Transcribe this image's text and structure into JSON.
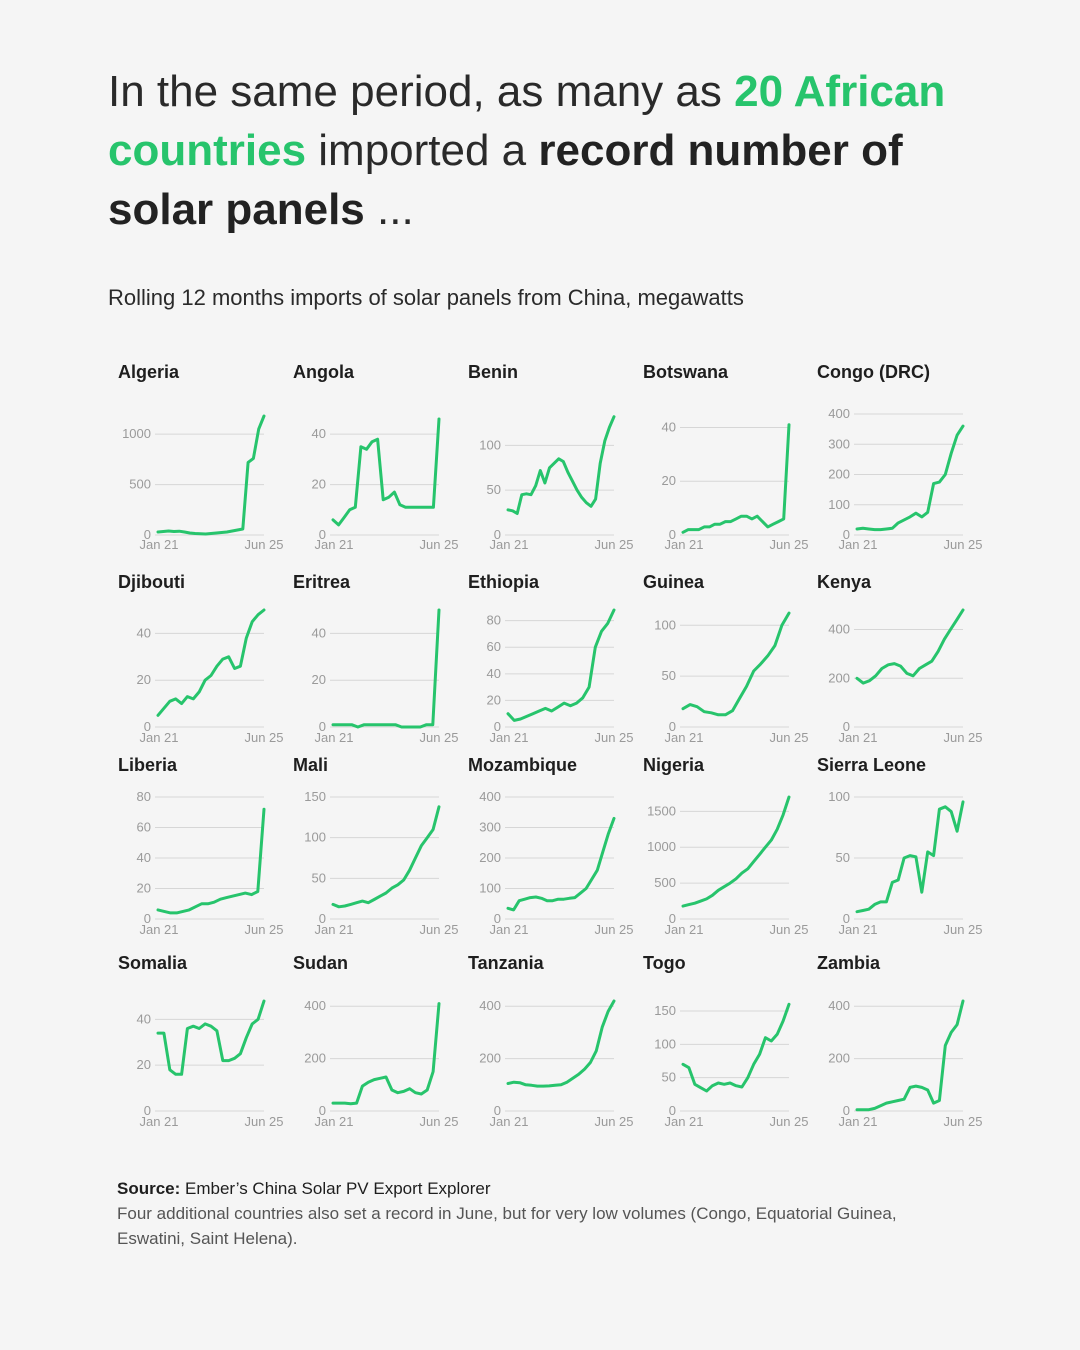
{
  "headline": {
    "p1": "In the same period,  as many as ",
    "accent": "20 African countries",
    "p2": " imported a ",
    "bold": "record number of solar panels",
    "p3": " ..."
  },
  "subtitle": "Rolling 12 months imports of solar panels from China, megawatts",
  "colors": {
    "line": "#27c46c",
    "grid": "#d6d6d6",
    "tick": "#9a9a9a",
    "background": "#f5f5f5"
  },
  "chart_data": [
    {
      "type": "line",
      "title": "Algeria",
      "x_labels": [
        "Jan 21",
        "Jun 25"
      ],
      "yticks": [
        0,
        500,
        1000
      ],
      "ylim": [
        0,
        1200
      ],
      "values": [
        30,
        35,
        40,
        35,
        38,
        30,
        20,
        15,
        12,
        10,
        15,
        20,
        25,
        30,
        40,
        50,
        60,
        720,
        760,
        1050,
        1180
      ]
    },
    {
      "type": "line",
      "title": "Angola",
      "x_labels": [
        "Jan 21",
        "Jun 25"
      ],
      "yticks": [
        0,
        20,
        40
      ],
      "ylim": [
        0,
        48
      ],
      "values": [
        6,
        4,
        7,
        10,
        11,
        35,
        34,
        37,
        38,
        14,
        15,
        17,
        12,
        11,
        11,
        11,
        11,
        11,
        11,
        46
      ]
    },
    {
      "type": "line",
      "title": "Benin",
      "x_labels": [
        "Jan 21",
        "Jun 25"
      ],
      "yticks": [
        0,
        50,
        100
      ],
      "ylim": [
        0,
        135
      ],
      "values": [
        28,
        27,
        24,
        45,
        46,
        45,
        55,
        72,
        58,
        75,
        80,
        85,
        82,
        70,
        60,
        50,
        42,
        36,
        32,
        40,
        80,
        105,
        120,
        132
      ]
    },
    {
      "type": "line",
      "title": "Botswana",
      "x_labels": [
        "Jan 21",
        "Jun 25"
      ],
      "yticks": [
        0,
        20,
        40
      ],
      "ylim": [
        0,
        45
      ],
      "values": [
        1,
        2,
        2,
        2,
        3,
        3,
        4,
        4,
        5,
        5,
        6,
        7,
        7,
        6,
        7,
        5,
        3,
        4,
        5,
        6,
        41
      ]
    },
    {
      "type": "line",
      "title": "Congo (DRC)",
      "x_labels": [
        "Jan 21",
        "Jun 25"
      ],
      "yticks": [
        0,
        100,
        200,
        300,
        400
      ],
      "ylim": [
        0,
        400
      ],
      "values": [
        20,
        22,
        20,
        18,
        18,
        20,
        22,
        40,
        50,
        60,
        72,
        60,
        75,
        170,
        175,
        200,
        270,
        330,
        360
      ]
    },
    {
      "type": "line",
      "title": "Djibouti",
      "x_labels": [
        "Jan 21",
        "Jun 25"
      ],
      "yticks": [
        0,
        20,
        40
      ],
      "ylim": [
        0,
        50
      ],
      "values": [
        5,
        8,
        11,
        12,
        10,
        13,
        12,
        15,
        20,
        22,
        26,
        29,
        30,
        25,
        26,
        38,
        45,
        48,
        50
      ]
    },
    {
      "type": "line",
      "title": "Eritrea",
      "x_labels": [
        "Jan 21",
        "Jun 25"
      ],
      "yticks": [
        0,
        20,
        40
      ],
      "ylim": [
        0,
        50
      ],
      "values": [
        1,
        1,
        1,
        1,
        0,
        1,
        1,
        1,
        1,
        1,
        1,
        0,
        0,
        0,
        0,
        1,
        1,
        50
      ]
    },
    {
      "type": "line",
      "title": "Ethiopia",
      "x_labels": [
        "Jan 21",
        "Jun 25"
      ],
      "yticks": [
        0,
        20,
        40,
        60,
        80
      ],
      "ylim": [
        0,
        88
      ],
      "values": [
        10,
        5,
        6,
        8,
        10,
        12,
        14,
        12,
        15,
        18,
        16,
        18,
        22,
        30,
        60,
        72,
        78,
        88
      ]
    },
    {
      "type": "line",
      "title": "Guinea",
      "x_labels": [
        "Jan 21",
        "Jun 25"
      ],
      "yticks": [
        0,
        50,
        100
      ],
      "ylim": [
        0,
        115
      ],
      "values": [
        18,
        22,
        20,
        15,
        14,
        12,
        12,
        16,
        28,
        40,
        55,
        62,
        70,
        80,
        100,
        112
      ]
    },
    {
      "type": "line",
      "title": "Kenya",
      "x_labels": [
        "Jan 21",
        "Jun 25"
      ],
      "yticks": [
        0,
        200,
        400
      ],
      "ylim": [
        0,
        480
      ],
      "values": [
        200,
        180,
        190,
        210,
        240,
        255,
        260,
        250,
        220,
        210,
        240,
        255,
        270,
        310,
        360,
        400,
        440,
        480
      ]
    },
    {
      "type": "line",
      "title": "Liberia",
      "x_labels": [
        "Jan 21",
        "Jun 25"
      ],
      "yticks": [
        0,
        20,
        40,
        60,
        80
      ],
      "ylim": [
        0,
        80
      ],
      "values": [
        6,
        5,
        4,
        4,
        5,
        6,
        8,
        10,
        10,
        11,
        13,
        14,
        15,
        16,
        17,
        16,
        18,
        72
      ]
    },
    {
      "type": "line",
      "title": "Mali",
      "x_labels": [
        "Jan 21",
        "Jun 25"
      ],
      "yticks": [
        0,
        50,
        100,
        150
      ],
      "ylim": [
        0,
        150
      ],
      "values": [
        18,
        15,
        16,
        18,
        20,
        22,
        20,
        24,
        28,
        32,
        38,
        42,
        48,
        60,
        75,
        90,
        100,
        110,
        138
      ]
    },
    {
      "type": "line",
      "title": "Mozambique",
      "x_labels": [
        "Jan 21",
        "Jun 25"
      ],
      "yticks": [
        0,
        100,
        200,
        300,
        400
      ],
      "ylim": [
        0,
        400
      ],
      "values": [
        35,
        30,
        60,
        65,
        70,
        72,
        68,
        60,
        60,
        65,
        65,
        68,
        70,
        85,
        100,
        130,
        160,
        220,
        280,
        330
      ]
    },
    {
      "type": "line",
      "title": "Nigeria",
      "x_labels": [
        "Jan 21",
        "Jun 25"
      ],
      "yticks": [
        0,
        500,
        1000,
        1500
      ],
      "ylim": [
        0,
        1700
      ],
      "values": [
        180,
        200,
        220,
        250,
        280,
        330,
        400,
        450,
        500,
        560,
        640,
        700,
        800,
        900,
        1000,
        1100,
        1250,
        1450,
        1700
      ]
    },
    {
      "type": "line",
      "title": "Sierra Leone",
      "x_labels": [
        "Jan 21",
        "Jun 25"
      ],
      "yticks": [
        0,
        50,
        100
      ],
      "ylim": [
        0,
        100
      ],
      "values": [
        6,
        7,
        8,
        12,
        14,
        14,
        30,
        32,
        50,
        52,
        51,
        22,
        55,
        52,
        90,
        92,
        88,
        72,
        96
      ]
    },
    {
      "type": "line",
      "title": "Somalia",
      "x_labels": [
        "Jan 21",
        "Jun 25"
      ],
      "yticks": [
        0,
        20,
        40
      ],
      "ylim": [
        0,
        48
      ],
      "values": [
        34,
        34,
        18,
        16,
        16,
        36,
        37,
        36,
        38,
        37,
        35,
        22,
        22,
        23,
        25,
        32,
        38,
        40,
        48
      ]
    },
    {
      "type": "line",
      "title": "Sudan",
      "x_labels": [
        "Jan 21",
        "Jun 25"
      ],
      "yticks": [
        0,
        200,
        400
      ],
      "ylim": [
        0,
        420
      ],
      "values": [
        30,
        30,
        30,
        28,
        30,
        95,
        110,
        120,
        125,
        130,
        80,
        70,
        75,
        85,
        70,
        65,
        80,
        150,
        410
      ]
    },
    {
      "type": "line",
      "title": "Tanzania",
      "x_labels": [
        "Jan 21",
        "Jun 25"
      ],
      "yticks": [
        0,
        200,
        400
      ],
      "ylim": [
        0,
        420
      ],
      "values": [
        105,
        110,
        108,
        100,
        98,
        95,
        95,
        96,
        98,
        100,
        110,
        125,
        140,
        160,
        185,
        230,
        320,
        380,
        420
      ]
    },
    {
      "type": "line",
      "title": "Togo",
      "x_labels": [
        "Jan 21",
        "Jun 25"
      ],
      "yticks": [
        0,
        50,
        100,
        150
      ],
      "ylim": [
        0,
        165
      ],
      "values": [
        70,
        65,
        40,
        35,
        30,
        38,
        42,
        40,
        42,
        38,
        36,
        50,
        70,
        85,
        110,
        105,
        115,
        135,
        160
      ]
    },
    {
      "type": "line",
      "title": "Zambia",
      "x_labels": [
        "Jan 21",
        "Jun 25"
      ],
      "yticks": [
        0,
        200,
        400
      ],
      "ylim": [
        0,
        420
      ],
      "values": [
        5,
        5,
        5,
        10,
        20,
        30,
        35,
        40,
        45,
        90,
        95,
        90,
        80,
        30,
        40,
        250,
        300,
        330,
        420
      ]
    }
  ],
  "footer": {
    "source_label": "Source:",
    "source_text": " Ember’s China Solar PV Export Explorer",
    "note": "Four additional countries also set a record in June, but for very low volumes (Congo, Equatorial Guinea, Eswatini, Saint Helena)."
  }
}
